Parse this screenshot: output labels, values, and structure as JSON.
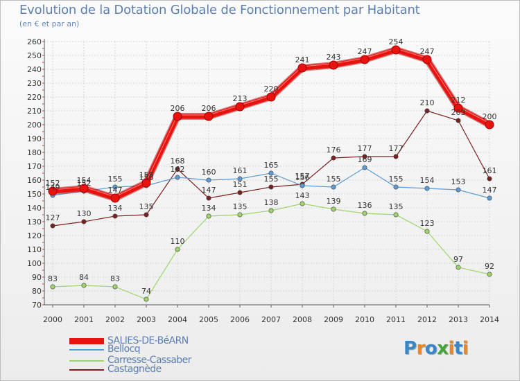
{
  "title": "Evolution de la Dotation Globale de Fonctionnement par Habitant",
  "subtitle": "(en € et par an)",
  "logo": {
    "letters": [
      "P",
      "r",
      "o",
      "x",
      "i",
      "t",
      "i"
    ],
    "colors": [
      "#3a86c8",
      "#e8862a",
      "#3a86c8",
      "#4aa23a",
      "#e8862a",
      "#3a86c8",
      "#e8862a"
    ]
  },
  "chart_data": {
    "type": "line",
    "title": "Evolution de la Dotation Globale de Fonctionnement par Habitant",
    "ylabel": "(en € et par an)",
    "xlabel": "",
    "x": [
      "2000",
      "2001",
      "2002",
      "2003",
      "2004",
      "2005",
      "2006",
      "2007",
      "2008",
      "2009",
      "2010",
      "2011",
      "2012",
      "2013",
      "2014"
    ],
    "ylim": [
      70,
      260
    ],
    "yticks": [
      "70",
      "80",
      "90",
      "100",
      "110",
      "120",
      "130",
      "140",
      "150",
      "160",
      "170",
      "180",
      "190",
      "200",
      "210",
      "220",
      "230",
      "240",
      "250",
      "260"
    ],
    "grid": true,
    "legend_position": "bottom-left",
    "series": [
      {
        "name": "SALIES-DE-BéARN",
        "color": "#e8130f",
        "style": "bold",
        "values": [
          152,
          154,
          147,
          158,
          206,
          206,
          213,
          220,
          241,
          243,
          247,
          254,
          247,
          212,
          200
        ]
      },
      {
        "name": "Bellocq",
        "color": "#5d9bd4",
        "style": "thin",
        "values": [
          149,
          152,
          155,
          156,
          162,
          160,
          161,
          165,
          156,
          155,
          169,
          155,
          154,
          153,
          147
        ]
      },
      {
        "name": "Carresse-Cassaber",
        "color": "#9ed46a",
        "style": "thin",
        "values": [
          83,
          84,
          83,
          74,
          110,
          134,
          135,
          138,
          143,
          139,
          136,
          135,
          123,
          97,
          92
        ]
      },
      {
        "name": "Castagnède",
        "color": "#7a2020",
        "style": "thin",
        "values": [
          127,
          130,
          134,
          135,
          168,
          147,
          151,
          155,
          157,
          176,
          177,
          177,
          210,
          203,
          161
        ]
      }
    ]
  }
}
